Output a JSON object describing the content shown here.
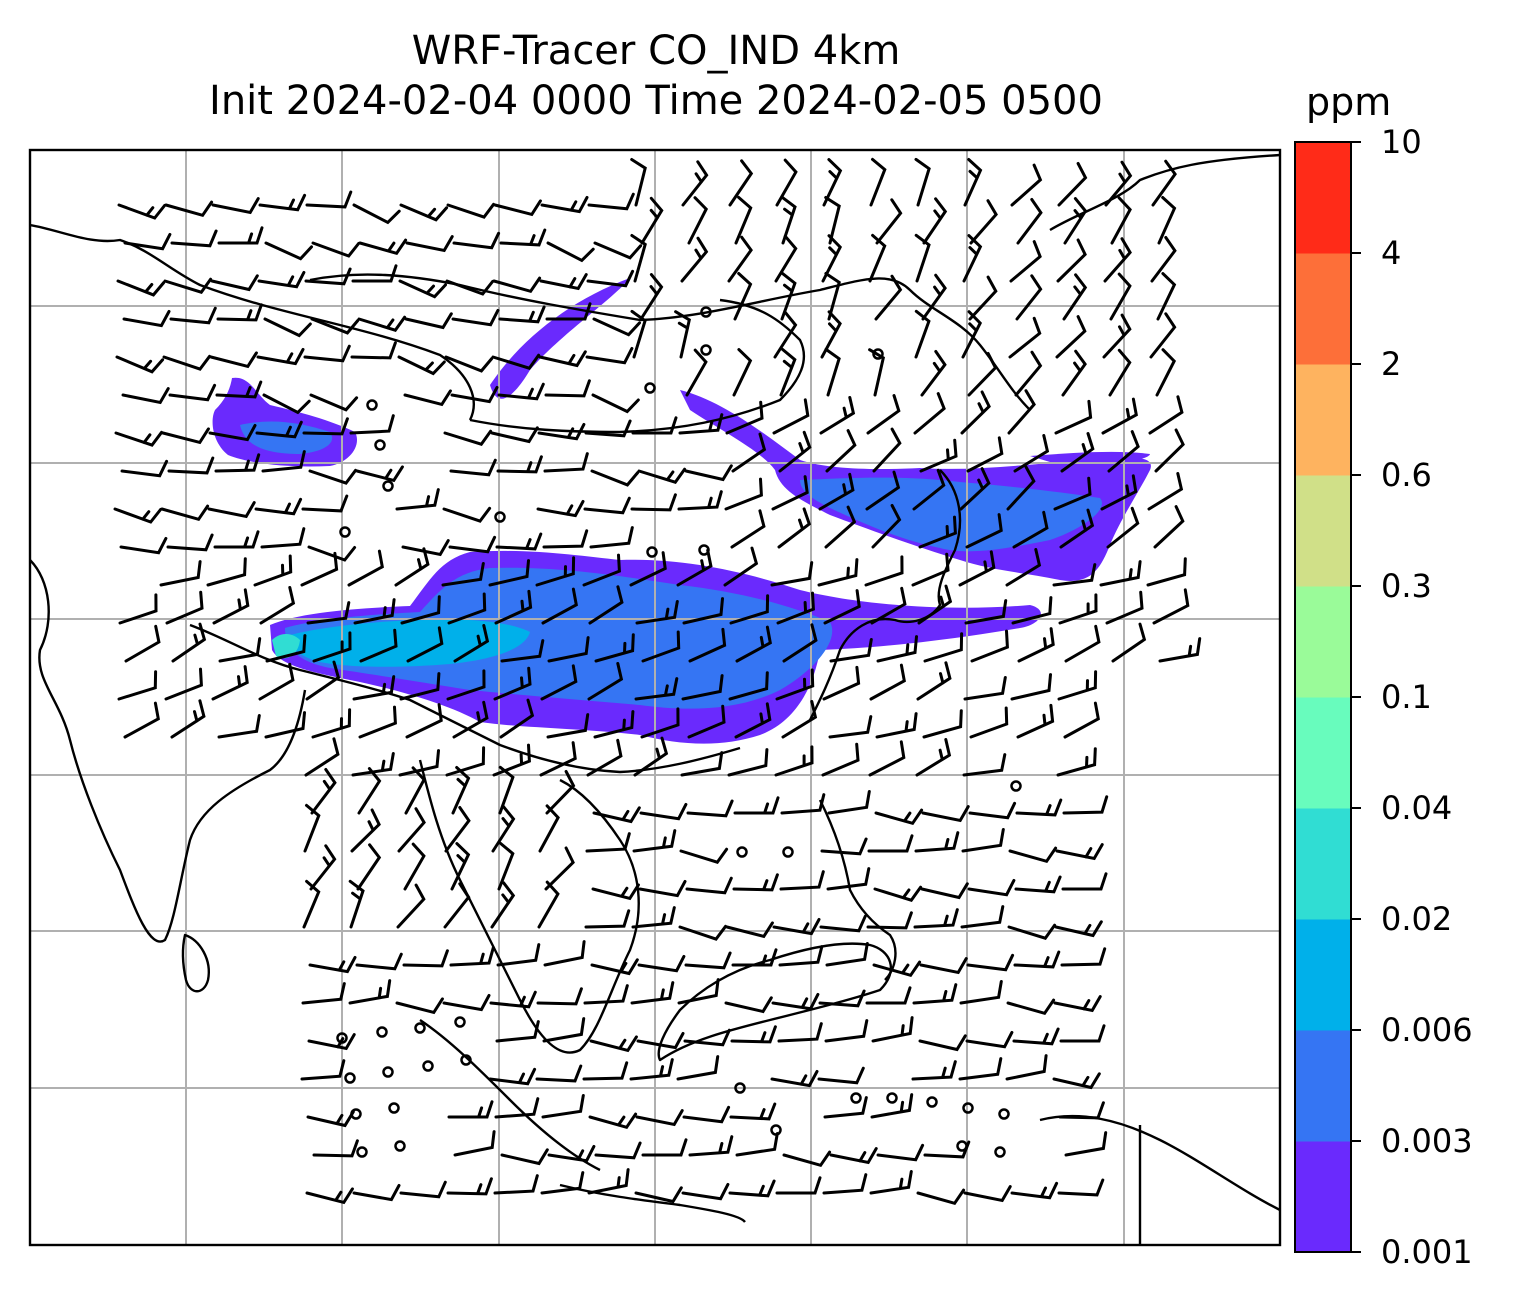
{
  "title": {
    "line1": "WRF-Tracer CO_IND 4km",
    "line2": "Init 2024-02-04 0000 Time 2024-02-05 0500"
  },
  "colorbar": {
    "units": "ppm",
    "ticks": [
      "0.001",
      "0.003",
      "0.006",
      "0.02",
      "0.04",
      "0.1",
      "0.3",
      "0.6",
      "2",
      "4",
      "10"
    ],
    "colors": [
      "#6a2afd",
      "#3575f3",
      "#00b0ea",
      "#30ddd3",
      "#68fcbd",
      "#9afb99",
      "#d0e088",
      "#feb35f",
      "#fd6f39",
      "#ff2b18"
    ]
  },
  "map": {
    "gridlines": true,
    "wind_barbs": true,
    "coastlines": true,
    "plume_levels": [
      "0.001-0.003 ppm",
      "0.003-0.006 ppm",
      "0.006-0.02 ppm"
    ]
  }
}
